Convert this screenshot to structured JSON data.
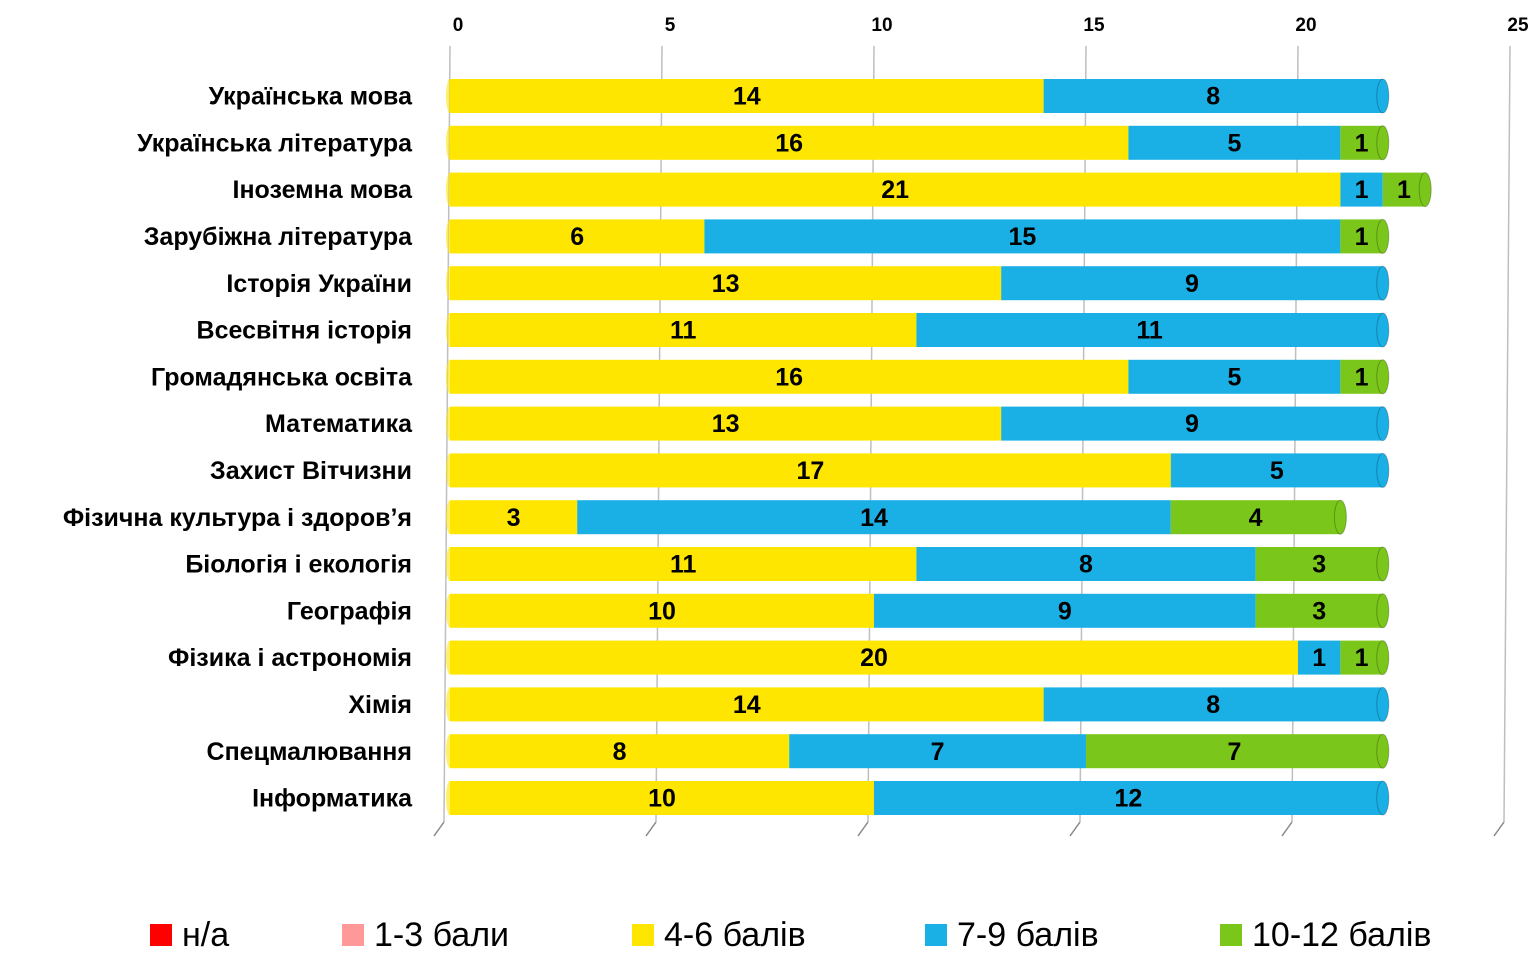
{
  "chart_data": {
    "type": "stacked_bar_horizontal",
    "categories": [
      "Українська мова",
      "Українська література",
      "Іноземна мова",
      "Зарубіжна література",
      "Історія України",
      "Всесвітня історія",
      "Громадянська освіта",
      "Математика",
      "Захист Вітчизни",
      "Фізична культура і здоров’я",
      "Біологія і екологія",
      "Географія",
      "Фізика і астрономія",
      "Хімія",
      "Спецмалювання",
      "Інформатика"
    ],
    "series": [
      {
        "name": "н/а",
        "color": "#ff0000",
        "values": [
          0,
          0,
          0,
          0,
          0,
          0,
          0,
          0,
          0,
          0,
          0,
          0,
          0,
          0,
          0,
          0
        ]
      },
      {
        "name": "1-3 бали",
        "color": "#ff9999",
        "values": [
          0,
          0,
          0,
          0,
          0,
          0,
          0,
          0,
          0,
          0,
          0,
          0,
          0,
          0,
          0,
          0
        ]
      },
      {
        "name": "4-6 балів",
        "color": "#ffe600",
        "values": [
          14,
          16,
          21,
          6,
          13,
          11,
          16,
          13,
          17,
          3,
          11,
          10,
          20,
          14,
          8,
          10
        ]
      },
      {
        "name": "7-9 балів",
        "color": "#1ab0e6",
        "values": [
          8,
          5,
          1,
          15,
          9,
          11,
          5,
          9,
          5,
          14,
          8,
          9,
          1,
          8,
          7,
          12
        ]
      },
      {
        "name": "10-12 балів",
        "color": "#7ac61a",
        "values": [
          0,
          1,
          1,
          1,
          0,
          0,
          1,
          0,
          0,
          4,
          3,
          3,
          1,
          0,
          7,
          0
        ]
      }
    ],
    "xlim": [
      0,
      25
    ],
    "xticks": [
      0,
      5,
      10,
      15,
      20,
      25
    ],
    "grid": true,
    "legend": "bottom"
  }
}
